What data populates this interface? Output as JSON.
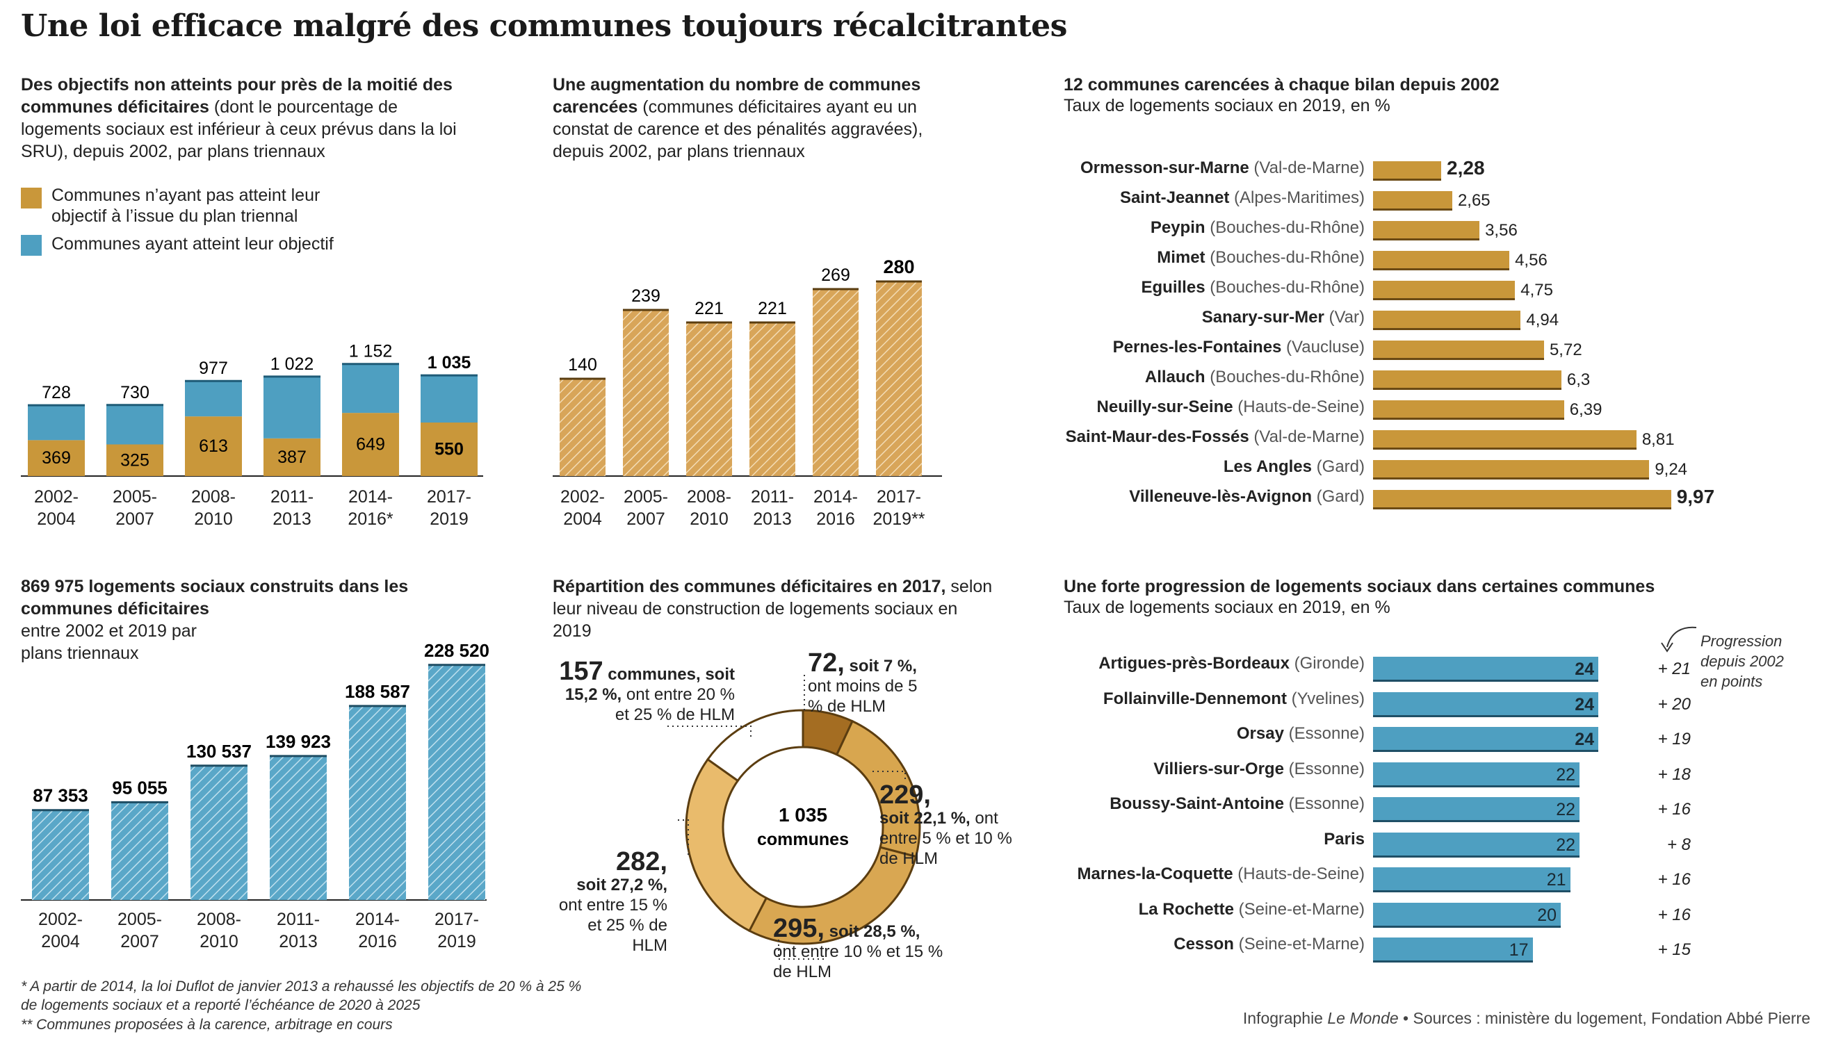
{
  "title": "Une loi efficace malgré des communes toujours récalcitrantes",
  "colors": {
    "gold": "#c9973a",
    "blue": "#4e9fc1",
    "gold_light": "#e7b766",
    "gold_dark": "#a46d22",
    "gold_mid": "#d8a64f",
    "gold_pale": "#e2ad55"
  },
  "panel1": {
    "title_bold": "Des objectifs non atteints pour près de la moitié des communes déficitaires",
    "title_rest": " (dont le pourcentage de logements sociaux est inférieur à ceux prévus dans la loi SRU), depuis 2002, par plans triennaux",
    "legend": [
      {
        "label": "Communes n’ayant pas atteint leur objectif à l’issue du plan triennal",
        "color": "#c9973a"
      },
      {
        "label": "Communes ayant atteint leur objectif",
        "color": "#4e9fc1"
      }
    ]
  },
  "panel2": {
    "title_bold": "Une augmentation du nombre de communes carencées",
    "title_rest": " (communes déficitaires ayant eu un constat de carence et des pénalités aggravées), depuis 2002, par plans triennaux"
  },
  "panel3": {
    "title_bold": "12 communes carencées à chaque bilan depuis 2002",
    "subtitle": "Taux de logements sociaux en 2019, en %"
  },
  "panel4": {
    "title_bold": "869 975 logements sociaux construits dans les communes déficitaires",
    "title_rest": "entre 2002 et 2019 par plans triennaux"
  },
  "panel5": {
    "title_bold": "Répartition des communes déficitaires en 2017,",
    "title_rest": " selon leur niveau de construction de logements sociaux en 2019",
    "center_number": "1 035",
    "center_label": "communes",
    "labels": [
      {
        "big": "72,",
        "bold": "soit 7 %,",
        "rest": "ont moins de 5 % de HLM"
      },
      {
        "big": "229,",
        "bold": "soit 22,1 %,",
        "rest": "ont entre 5 % et 10 % de HLM"
      },
      {
        "big": "295,",
        "bold": "soit 28,5 %,",
        "rest": "ont entre 10 % et 15 % de HLM"
      },
      {
        "big": "282,",
        "bold": "soit 27,2 %,",
        "rest": "ont entre 15 % et 25 % de HLM"
      },
      {
        "big": "157",
        "bold": "communes, soit 15,2 %,",
        "rest": "ont entre 20 % et 25 % de HLM"
      }
    ]
  },
  "panel6": {
    "title_bold": "Une forte progression de logements sociaux dans certaines communes",
    "subtitle": "Taux de logements sociaux en 2019, en %",
    "annotation": "Progression depuis 2002 en points"
  },
  "footnotes": [
    "* A partir de 2014, la loi Duflot de janvier 2013 a rehaussé les objectifs de 20 % à 25 % de logements sociaux et a reporté l’échéance de 2020 à 2025",
    "** Communes proposées à la carence, arbitrage en cours"
  ],
  "credit": {
    "prefix": "Infographie ",
    "brand": "Le Monde",
    "sources": " • Sources : ministère du logement, Fondation Abbé Pierre"
  },
  "chart_data": [
    {
      "type": "bar",
      "stacked": true,
      "categories": [
        "2002-2004",
        "2005-2007",
        "2008-2010",
        "2011-2013",
        "2014-2016*",
        "2017-2019"
      ],
      "series": [
        {
          "name": "Communes n’ayant pas atteint leur objectif à l’issue du plan triennal",
          "values": [
            369,
            325,
            613,
            387,
            649,
            550
          ],
          "color": "#c9973a"
        },
        {
          "name": "Communes ayant atteint leur objectif",
          "values": [
            359,
            405,
            364,
            635,
            503,
            485
          ],
          "color": "#4e9fc1"
        }
      ],
      "totals": [
        "728",
        "730",
        "977",
        "1 022",
        "1 152",
        "1 035"
      ],
      "bottom_labels": [
        "369",
        "325",
        "613",
        "387",
        "649",
        "550"
      ],
      "ylim": [
        0,
        1200
      ]
    },
    {
      "type": "bar",
      "pattern": "hatched",
      "categories": [
        "2002-2004",
        "2005-2007",
        "2008-2010",
        "2011-2013",
        "2014-2016",
        "2017-2019**"
      ],
      "values": [
        140,
        239,
        221,
        221,
        269,
        280
      ],
      "labels": [
        "140",
        "239",
        "221",
        "221",
        "269",
        "280"
      ],
      "ylim": [
        0,
        300
      ]
    },
    {
      "type": "bar",
      "orientation": "horizontal",
      "categories": [
        "Ormesson-sur-Marne",
        "Saint-Jeannet",
        "Peypin",
        "Mimet",
        "Eguilles",
        "Sanary-sur-Mer",
        "Pernes-les-Fontaines",
        "Allauch",
        "Neuilly-sur-Seine",
        "Saint-Maur-des-Fossés",
        "Les Angles",
        "Villeneuve-lès-Avignon"
      ],
      "regions": [
        "(Val-de-Marne)",
        "(Alpes-Maritimes)",
        "(Bouches-du-Rhône)",
        "(Bouches-du-Rhône)",
        "(Bouches-du-Rhône)",
        "(Var)",
        "(Vaucluse)",
        "(Bouches-du-Rhône)",
        "(Hauts-de-Seine)",
        "(Val-de-Marne)",
        "(Gard)",
        "(Gard)"
      ],
      "values": [
        2.28,
        2.65,
        3.56,
        4.56,
        4.75,
        4.94,
        5.72,
        6.3,
        6.39,
        8.81,
        9.24,
        9.97
      ],
      "labels": [
        "2,28",
        "2,65",
        "3,56",
        "4,56",
        "4,75",
        "4,94",
        "5,72",
        "6,3",
        "6,39",
        "8,81",
        "9,24",
        "9,97"
      ],
      "xlim": [
        0,
        10
      ]
    },
    {
      "type": "bar",
      "pattern": "hatched",
      "categories": [
        "2002-2004",
        "2005-2007",
        "2008-2010",
        "2011-2013",
        "2014-2016",
        "2017-2019"
      ],
      "values": [
        87353,
        95055,
        130537,
        139923,
        188587,
        228520
      ],
      "labels": [
        "87 353",
        "95 055",
        "130 537",
        "139 923",
        "188 587",
        "228 520"
      ],
      "ylim": [
        0,
        230000
      ]
    },
    {
      "type": "pie",
      "donut": true,
      "categories": [
        "moins de 5 %",
        "entre 5 % et 10 %",
        "entre 10 % et 15 %",
        "entre 15 % et 25 %",
        "entre 20 % et 25 %"
      ],
      "values": [
        72,
        229,
        295,
        282,
        157
      ],
      "percent": [
        7,
        22.1,
        28.5,
        27.2,
        15.2
      ],
      "colors": [
        "#a46d22",
        "#d8a64f",
        "#d9a752",
        "#e9bb6c",
        "#ffffff"
      ]
    },
    {
      "type": "bar",
      "orientation": "horizontal",
      "categories": [
        "Artigues-près-Bordeaux",
        "Follainville-Dennemont",
        "Orsay",
        "Villiers-sur-Orge",
        "Boussy-Saint-Antoine",
        "Paris",
        "Marnes-la-Coquette",
        "La Rochette",
        "Cesson"
      ],
      "regions": [
        "(Gironde)",
        "(Yvelines)",
        "(Essonne)",
        "(Essonne)",
        "(Essonne)",
        "",
        "(Hauts-de-Seine)",
        "(Seine-et-Marne)",
        "(Seine-et-Marne)"
      ],
      "values": [
        24,
        24,
        24,
        22,
        22,
        22,
        21,
        20,
        17
      ],
      "progression": [
        "+ 21",
        "+ 20",
        "+ 19",
        "+ 18",
        "+ 16",
        "+ 8",
        "+ 16",
        "+ 16",
        "+ 15"
      ],
      "xlim": [
        0,
        24
      ]
    }
  ]
}
